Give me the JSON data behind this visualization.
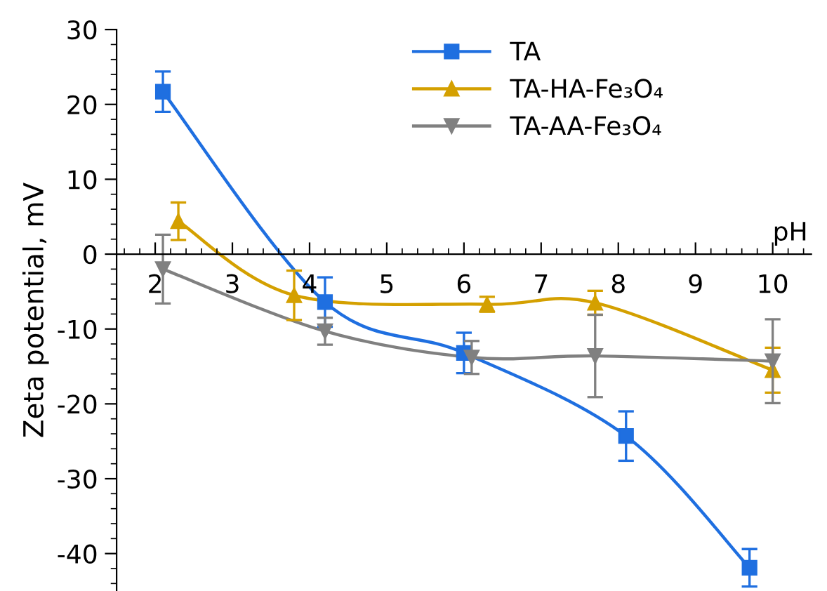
{
  "chart_data": {
    "type": "line",
    "xlabel": "pH",
    "ylabel": "Zeta potential, mV",
    "xlim": [
      1.5,
      10.5
    ],
    "xticks": [
      2,
      3,
      4,
      5,
      6,
      7,
      8,
      9,
      10
    ],
    "ylim": [
      -45,
      30
    ],
    "yticks": [
      -40,
      -30,
      -20,
      -10,
      0,
      10,
      20,
      30
    ],
    "grid": false,
    "legend": "top right",
    "series": [
      {
        "name": "TA",
        "color": "#1f6fe0",
        "marker": "square",
        "x": [
          2.1,
          4.2,
          6.0,
          8.1,
          9.7
        ],
        "values": [
          21.7,
          -6.4,
          -13.2,
          -24.3,
          -41.9
        ],
        "errors": [
          2.7,
          3.3,
          2.7,
          3.3,
          2.5
        ]
      },
      {
        "name": "TA-HA-Fe₃O₄",
        "color": "#d4a000",
        "marker": "triangle",
        "x": [
          2.3,
          3.8,
          6.3,
          7.7,
          10.0
        ],
        "values": [
          4.4,
          -5.5,
          -6.7,
          -6.5,
          -15.5
        ],
        "errors": [
          2.5,
          3.3,
          1.0,
          1.6,
          3.0
        ]
      },
      {
        "name": "TA-AA-Fe₃O₄",
        "color": "#808080",
        "marker": "triangle_down",
        "x": [
          2.1,
          4.2,
          6.1,
          7.7,
          10.0
        ],
        "values": [
          -2.0,
          -10.3,
          -13.8,
          -13.6,
          -14.3
        ],
        "errors": [
          4.6,
          1.8,
          2.2,
          5.5,
          5.6
        ]
      }
    ]
  }
}
